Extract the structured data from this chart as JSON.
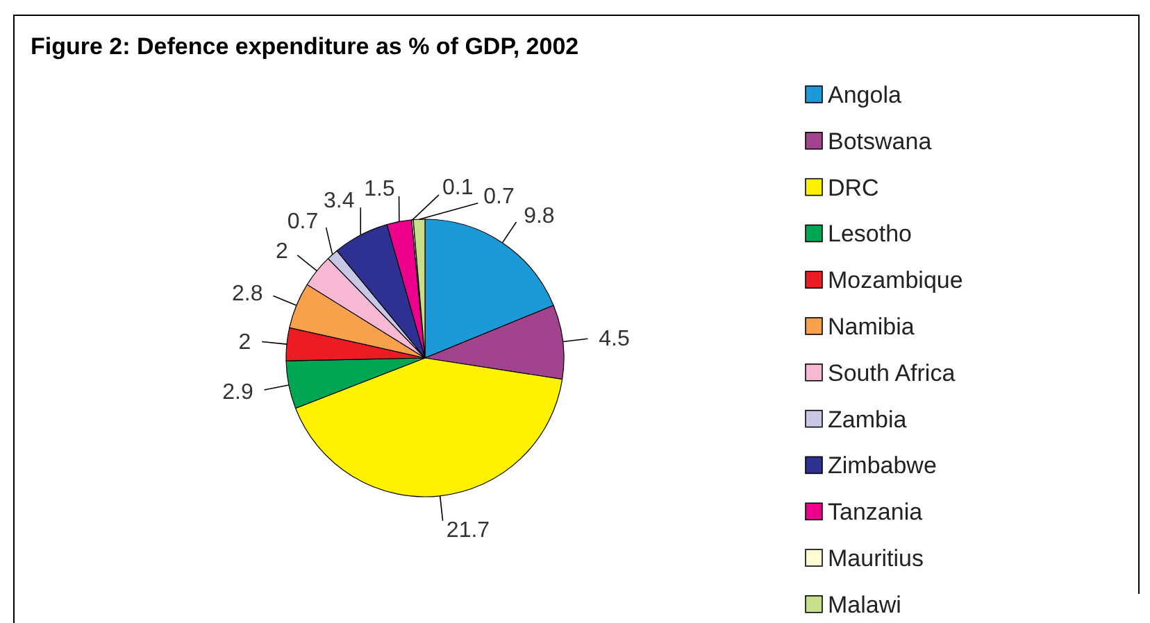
{
  "chart_data": {
    "type": "pie",
    "title": "Figure 2: Defence expenditure as % of GDP, 2002",
    "categories": [
      "Angola",
      "Botswana",
      "DRC",
      "Lesotho",
      "Mozambique",
      "Namibia",
      "South Africa",
      "Zambia",
      "Zimbabwe",
      "Tanzania",
      "Mauritius",
      "Malawi"
    ],
    "values": [
      9.8,
      4.5,
      21.7,
      2.9,
      2,
      2.8,
      2,
      0.7,
      3.4,
      1.5,
      0.1,
      0.7
    ],
    "colors": [
      "#1b9ad7",
      "#a2438d",
      "#fff200",
      "#00a651",
      "#ed1c24",
      "#f7a14c",
      "#f6b8d3",
      "#c8c8e6",
      "#2e3192",
      "#ec008c",
      "#fffbd2",
      "#c8e08c"
    ],
    "data_labels": true,
    "legend": "right"
  }
}
